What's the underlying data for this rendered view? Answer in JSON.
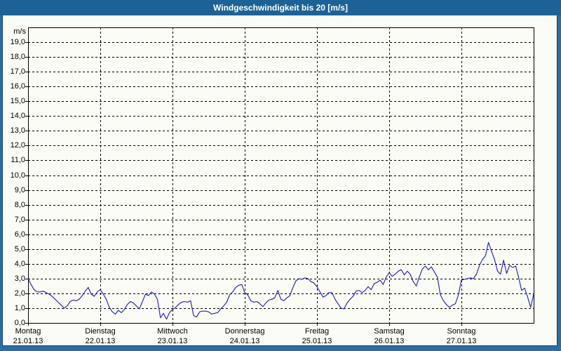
{
  "window": {
    "title": "Windgeschwindigkeit bis 20 [m/s]"
  },
  "colors": {
    "title_bar": "#1d6296",
    "frame_blue": "#2e6da4",
    "frame_navy": "#1a3a5c",
    "background": "#fbfcf5",
    "line": "#2323c0",
    "grid": "#000000",
    "text": "#000000"
  },
  "chart_data": {
    "type": "line",
    "title": "Windgeschwindigkeit bis 20 [m/s]",
    "unit_label": "m/s",
    "ylabel": "m/s",
    "ylim": [
      0,
      20
    ],
    "y_tick_step": 1.0,
    "grid": "dashed",
    "legend": "none",
    "y_tick_labels": [
      "0,0",
      "1,0",
      "2,0",
      "3,0",
      "4,0",
      "5,0",
      "6,0",
      "7,0",
      "8,0",
      "9,0",
      "10,0",
      "11,0",
      "12,0",
      "13,0",
      "14,0",
      "15,0",
      "16,0",
      "17,0",
      "18,0",
      "19,0"
    ],
    "x_ticks": [
      {
        "day": "Montag",
        "date": "21.01.13"
      },
      {
        "day": "Dienstag",
        "date": "22.01.13"
      },
      {
        "day": "Mittwoch",
        "date": "23.01.13"
      },
      {
        "day": "Donnerstag",
        "date": "24.01.13"
      },
      {
        "day": "Freitag",
        "date": "25.01.13"
      },
      {
        "day": "Samstag",
        "date": "26.01.13"
      },
      {
        "day": "Sonntag",
        "date": "27.01.13"
      }
    ],
    "series": [
      {
        "name": "Windgeschwindigkeit",
        "unit": "m/s",
        "sampling": "hourly, 7 days",
        "values": [
          3.0,
          2.6,
          2.25,
          2.1,
          2.1,
          2.15,
          2.05,
          1.95,
          1.8,
          1.6,
          1.4,
          1.2,
          1.0,
          1.15,
          1.45,
          1.55,
          1.5,
          1.6,
          1.85,
          2.15,
          2.4,
          1.95,
          1.8,
          2.1,
          2.25,
          1.95,
          1.6,
          1.05,
          0.75,
          0.6,
          0.85,
          0.7,
          0.9,
          1.25,
          1.45,
          1.35,
          1.15,
          0.95,
          1.45,
          1.95,
          1.85,
          2.1,
          1.95,
          1.6,
          0.35,
          0.65,
          0.25,
          0.7,
          0.9,
          1.05,
          1.25,
          1.4,
          1.45,
          1.4,
          1.5,
          0.5,
          0.4,
          0.75,
          0.8,
          0.8,
          0.75,
          0.6,
          0.65,
          0.7,
          0.95,
          1.15,
          1.4,
          1.9,
          2.1,
          2.4,
          2.55,
          2.6,
          2.05,
          1.9,
          1.5,
          1.4,
          1.45,
          1.3,
          1.1,
          1.35,
          1.55,
          1.6,
          1.7,
          2.2,
          1.6,
          1.5,
          1.7,
          1.85,
          2.4,
          2.85,
          3.0,
          2.95,
          3.05,
          3.0,
          2.8,
          2.7,
          2.45,
          2.1,
          1.75,
          1.85,
          2.05,
          2.05,
          1.6,
          1.3,
          1.0,
          0.95,
          1.35,
          1.6,
          1.8,
          2.15,
          2.2,
          2.05,
          2.2,
          2.45,
          2.25,
          2.65,
          2.75,
          2.9,
          2.6,
          3.1,
          3.4,
          3.15,
          3.3,
          3.5,
          3.6,
          3.25,
          3.5,
          3.3,
          2.8,
          2.5,
          3.1,
          3.65,
          3.85,
          3.6,
          3.8,
          3.45,
          3.1,
          1.9,
          1.5,
          1.25,
          1.05,
          1.2,
          1.3,
          1.9,
          2.9,
          2.95,
          3.0,
          3.05,
          3.0,
          3.3,
          3.9,
          4.3,
          4.55,
          5.45,
          4.85,
          4.3,
          3.5,
          3.3,
          4.25,
          3.35,
          3.9,
          3.75,
          3.85,
          3.1,
          2.2,
          2.35,
          1.75,
          1.05,
          1.95
        ]
      }
    ]
  }
}
